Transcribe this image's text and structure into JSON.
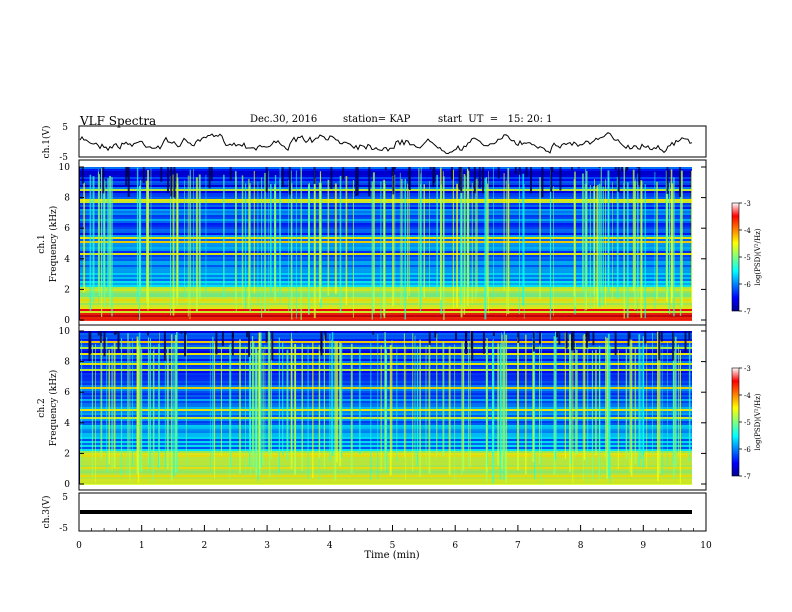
{
  "header": {
    "title": "VLF Spectra",
    "date": "Dec.30, 2016",
    "station": "station= KAP",
    "start": "start  UT  =   15: 20: 1"
  },
  "chart_data": [
    {
      "type": "line",
      "ylabel": "ch.1(V)",
      "ylim": [
        -5,
        5
      ],
      "yticks": [
        "5",
        "-5"
      ],
      "xlim": [
        0,
        10
      ],
      "series": [
        {
          "color": "#000000",
          "note_level": 0
        }
      ]
    },
    {
      "type": "heatmap",
      "ylabel": "ch.1\nFrequency (kHz)",
      "ylim": [
        0,
        10
      ],
      "yticks": [
        "0",
        "2",
        "4",
        "6",
        "8",
        "10"
      ],
      "xlim": [
        0,
        10
      ],
      "colorbar": {
        "label": "log(PSD)(V²/Hz)",
        "ticks": [
          "-3",
          "-4",
          "-5",
          "-6",
          "-7"
        ],
        "range": [
          -7,
          -3
        ]
      }
    },
    {
      "type": "heatmap",
      "ylabel": "ch.2\nFrequency (kHz)",
      "ylim": [
        0,
        10
      ],
      "yticks": [
        "0",
        "2",
        "4",
        "6",
        "8",
        "10"
      ],
      "xlim": [
        0,
        10
      ],
      "colorbar": {
        "label": "log(PSD)(V²/Hz)",
        "ticks": [
          "-3",
          "-4",
          "-5",
          "-6",
          "-7"
        ],
        "range": [
          -7,
          -3
        ]
      }
    },
    {
      "type": "line",
      "ylabel": "ch.3(V)",
      "ylim": [
        -5,
        5
      ],
      "yticks": [
        "5",
        "-5"
      ],
      "xlim": [
        0,
        10
      ],
      "xlabel": "Time (min)",
      "xticks": [
        "0",
        "1",
        "2",
        "3",
        "4",
        "5",
        "6",
        "7",
        "8",
        "9",
        "10"
      ],
      "series": [
        {
          "color": "#000000",
          "constant_value": 0
        }
      ]
    }
  ],
  "colors": {
    "jet_low": "#00008f",
    "jet_high": "#800000"
  }
}
